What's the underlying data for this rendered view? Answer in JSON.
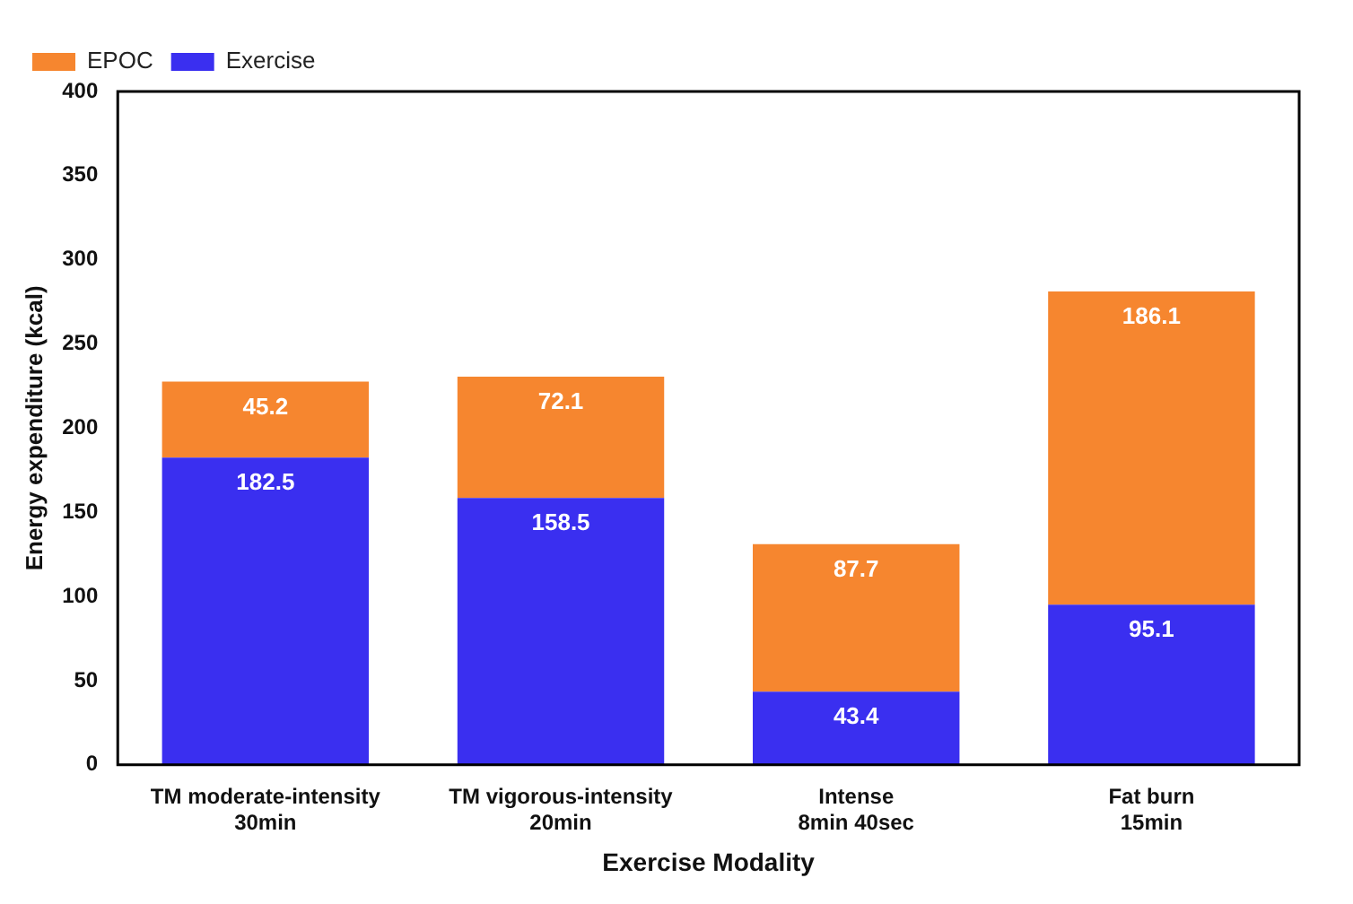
{
  "chart_data": {
    "type": "bar",
    "xlabel": "Exercise Modality",
    "ylabel": "Energy expenditure (kcal)",
    "categories": [
      "TM moderate-intensity\n30min",
      "TM vigorous-intensity\n20min",
      "Intense\n8min 40sec",
      "Fat burn\n15min"
    ],
    "series": [
      {
        "name": "Exercise",
        "color": "#3a2ff0",
        "values": [
          182.5,
          158.5,
          43.4,
          95.1
        ]
      },
      {
        "name": "EPOC",
        "color": "#f6862f",
        "values": [
          45.2,
          72.1,
          87.7,
          186.1
        ]
      }
    ],
    "stacked": true,
    "data_labels": true,
    "ylim": [
      0,
      400
    ],
    "yticks": [
      0,
      50,
      100,
      150,
      200,
      250,
      300,
      350,
      400
    ],
    "grid": false,
    "legend": "top left"
  }
}
